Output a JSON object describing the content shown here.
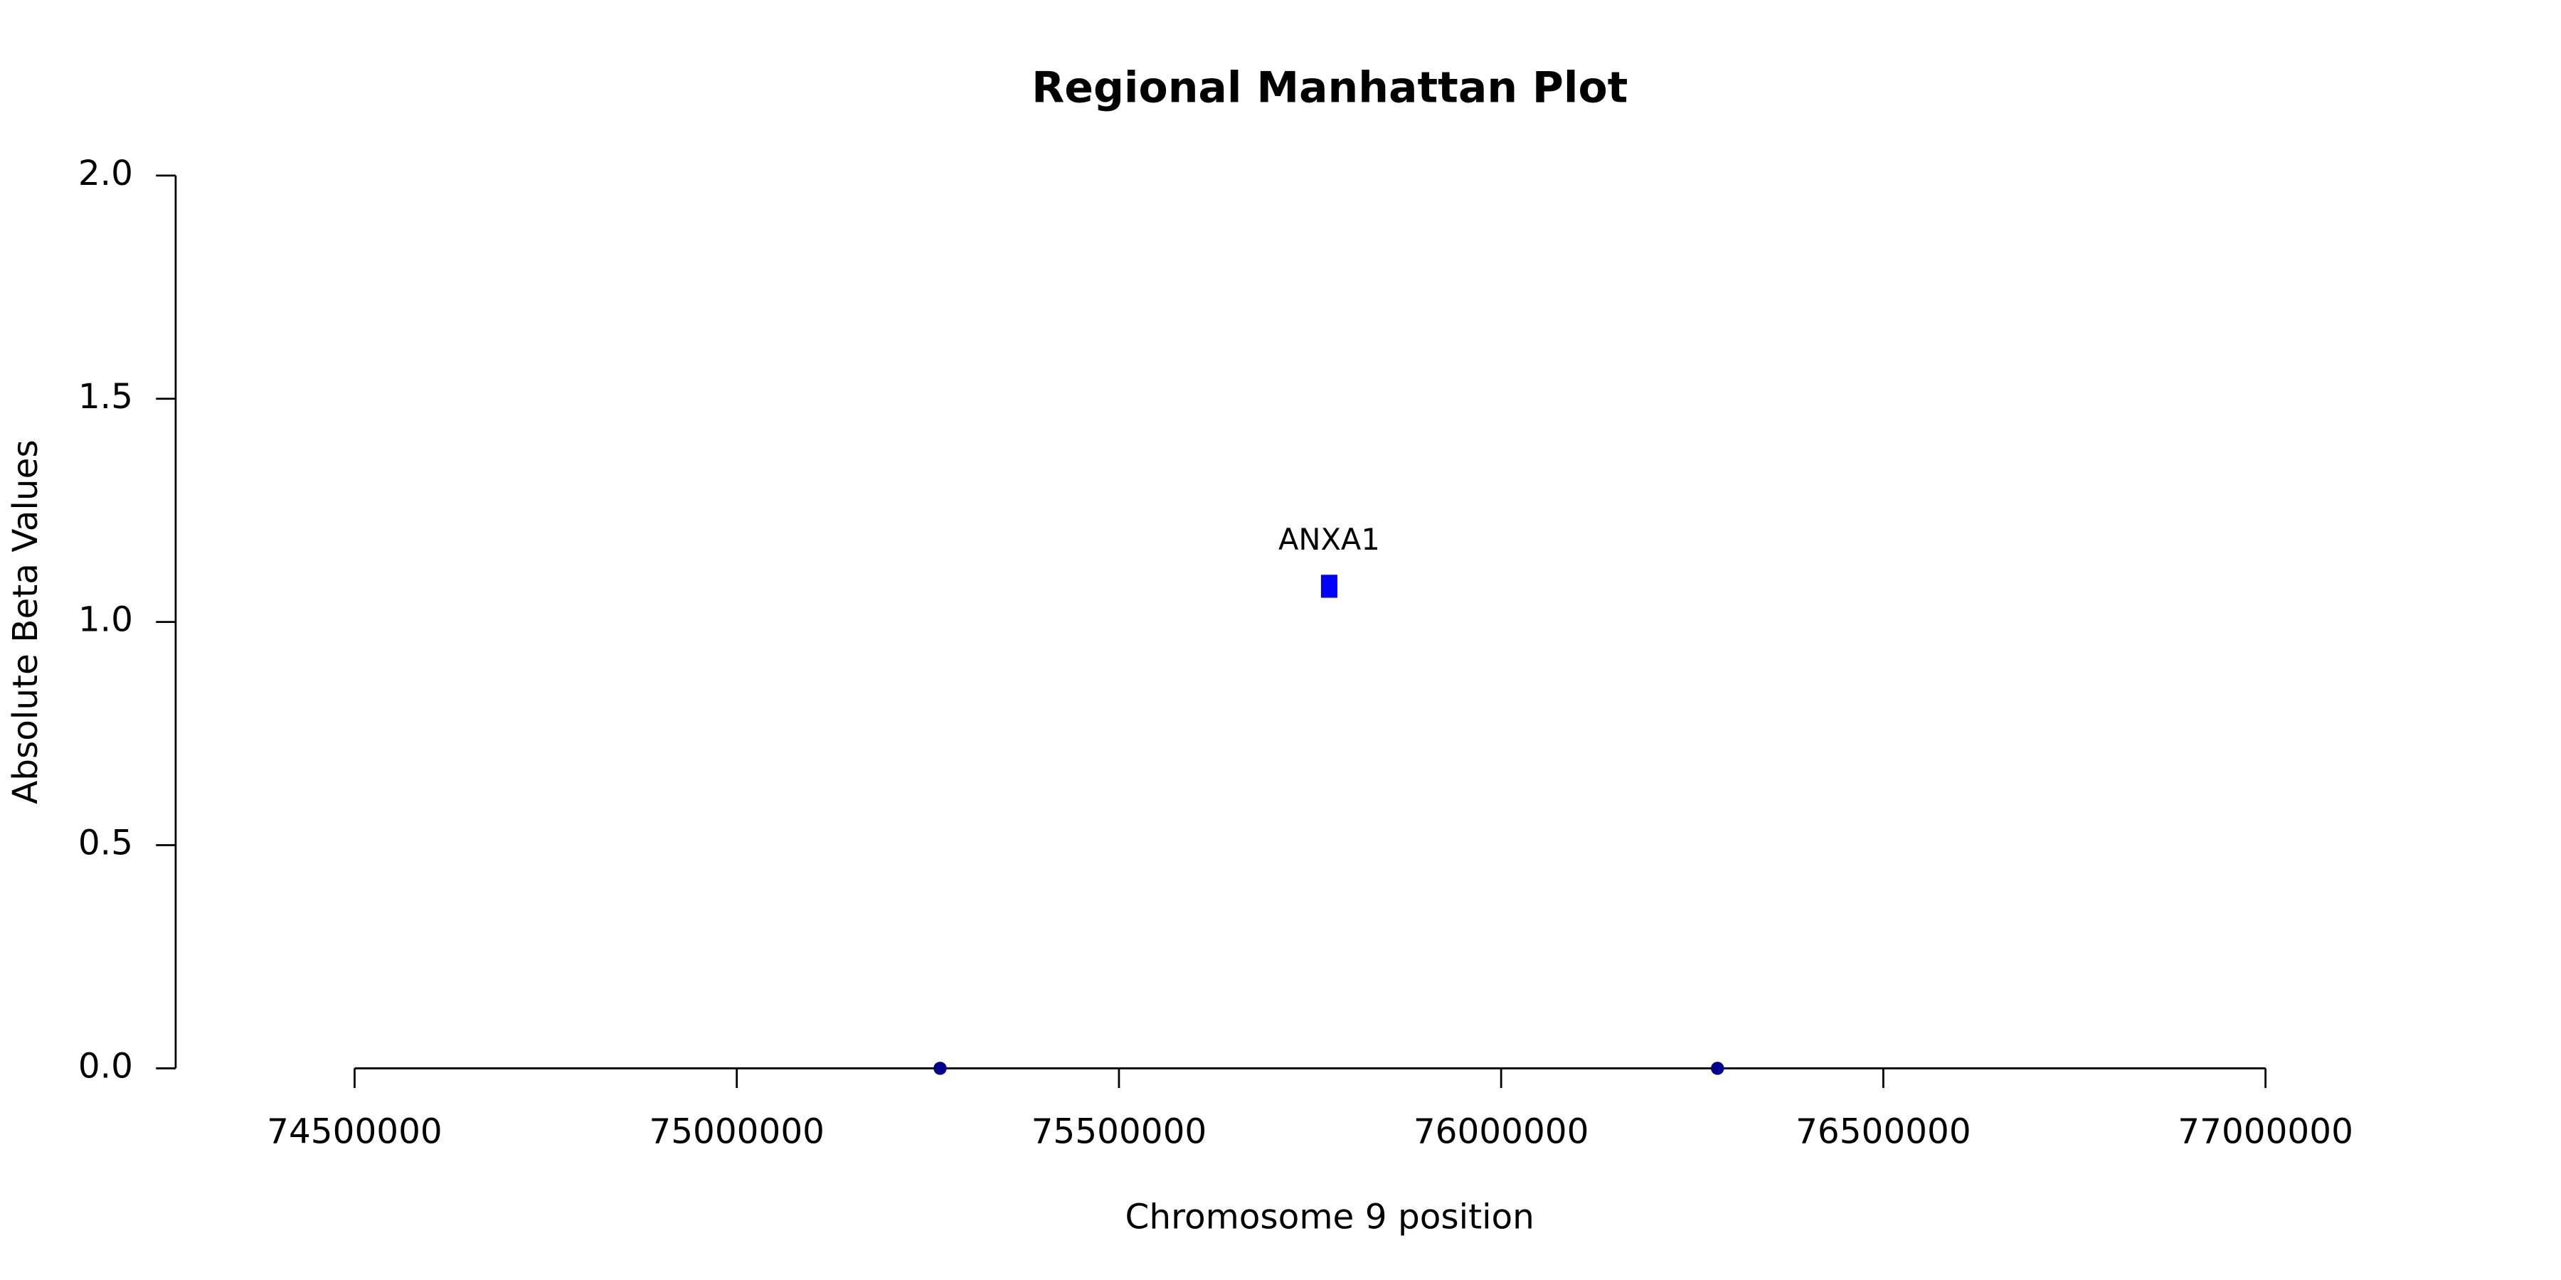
{
  "chart_data": {
    "type": "scatter",
    "title": "Regional Manhattan Plot",
    "x_label": "Chromosome 9 position",
    "y_label": "Absolute Beta Values",
    "series": [
      {
        "color": "#00008b",
        "marker": "circle",
        "x": [
          75266000,
          76283000
        ],
        "values": [
          0,
          0
        ]
      },
      {
        "color": "#0000ff",
        "marker": "square",
        "x": [
          75775000
        ],
        "values": [
          1.08
        ],
        "labels": [
          "ANXA1"
        ]
      }
    ],
    "xlim": [
      74500000,
      77000000
    ],
    "xticks": [
      74500000,
      75000000,
      75500000,
      76000000,
      76500000,
      77000000
    ],
    "ylim": [
      0,
      2
    ],
    "yticks": [
      {
        "value": 0,
        "label": "0.0"
      },
      0.5,
      {
        "value": 1,
        "label": "1.0"
      },
      1.5,
      {
        "value": 2,
        "label": "2.0"
      }
    ],
    "grid": false
  }
}
